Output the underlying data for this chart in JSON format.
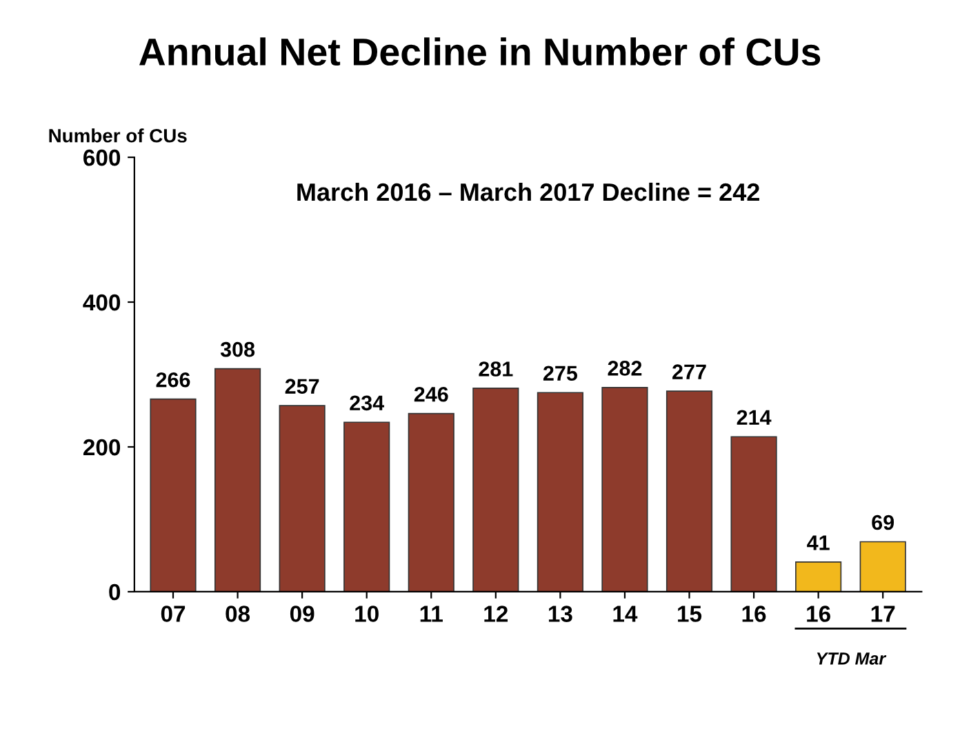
{
  "chart_data": {
    "type": "bar",
    "title": "Annual Net Decline in Number of CUs",
    "ylabel": "Number of CUs",
    "categories": [
      "07",
      "08",
      "09",
      "10",
      "11",
      "12",
      "13",
      "14",
      "15",
      "16",
      "16",
      "17"
    ],
    "values": [
      266,
      308,
      257,
      234,
      246,
      281,
      275,
      282,
      277,
      214,
      41,
      69
    ],
    "colors": [
      "#8e3b2c",
      "#8e3b2c",
      "#8e3b2c",
      "#8e3b2c",
      "#8e3b2c",
      "#8e3b2c",
      "#8e3b2c",
      "#8e3b2c",
      "#8e3b2c",
      "#8e3b2c",
      "#f2b81c",
      "#f2b81c"
    ],
    "ylim": [
      0,
      600
    ],
    "yticks": [
      0,
      200,
      400,
      600
    ],
    "grid": false,
    "data_labels": true,
    "annotations": [
      "March 2016 – March 2017 Decline = 242",
      "YTD Mar"
    ]
  }
}
